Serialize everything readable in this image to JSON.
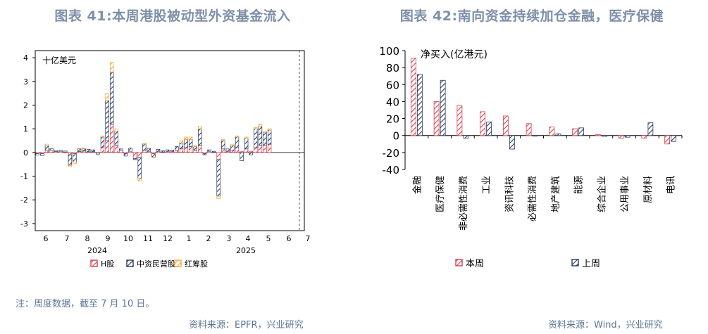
{
  "left": {
    "title": "图表 41:本周港股被动型外资基金流入",
    "source": "资料来源：EPFR，兴业研究",
    "note": "注：周度数据，截至 7 月 10 日。"
  },
  "right": {
    "title": "图表 42:南向资金持续加仓金融，医疗保健",
    "source": "资料来源：Wind，兴业研究"
  },
  "colors": {
    "red": "#d6404e",
    "navy": "#2b3a5c",
    "orange": "#f2a43a",
    "title": "#7d90a9",
    "note": "#5a7596"
  },
  "chart_data": [
    {
      "type": "bar",
      "stacked": true,
      "unit_label": "十亿美元",
      "ylim": [
        -3.3,
        4.3
      ],
      "y_ticks": [
        "4",
        "3",
        "2",
        "1",
        "0",
        "-1",
        "-2",
        "-3"
      ],
      "x_tick_labels": [
        "6",
        "7",
        "8",
        "9",
        "10",
        "11",
        "12",
        "1",
        "2",
        "3",
        "4",
        "5",
        "6",
        "7"
      ],
      "year_labels": [
        "2024",
        "2025"
      ],
      "legend": [
        "H股",
        "中资民营股",
        "红筹股"
      ],
      "legend_position": "bottom",
      "weeks": 58,
      "series": [
        {
          "name": "H股",
          "values": [
            -0.05,
            -0.05,
            0.1,
            0.08,
            0.04,
            0.05,
            0.02,
            -0.1,
            -0.05,
            0.04,
            0.06,
            0.03,
            0.03,
            -0.02,
            0.2,
            0.5,
            1.2,
            0.3,
            0.1,
            -0.05,
            0.05,
            -0.25,
            -0.2,
            0.1,
            0.05,
            -0.05,
            0.05,
            0.02,
            0.05,
            0.05,
            0.1,
            0.15,
            0.2,
            0.25,
            0.1,
            0.3,
            -0.05,
            0.05,
            0.02,
            -0.3,
            0.15,
            0.05,
            0.1,
            0.2,
            0.05,
            0.15,
            0.05,
            0.2,
            0.3,
            0.3,
            0.35,
            0,
            0,
            0,
            0,
            0,
            0,
            0
          ]
        },
        {
          "name": "中资民营股",
          "values": [
            -0.05,
            -0.08,
            0.2,
            0.08,
            0.05,
            0.04,
            0.04,
            -0.45,
            -0.35,
            0.12,
            0.1,
            0.1,
            0.08,
            -0.05,
            0.45,
            1.7,
            2.2,
            0.6,
            0.05,
            -0.1,
            0.13,
            -0.05,
            -0.9,
            0.25,
            0.12,
            -0.15,
            0.08,
            0.05,
            0.06,
            0.05,
            0.15,
            0.25,
            0.35,
            0.3,
            0.15,
            0.7,
            -0.05,
            0.06,
            0.03,
            -1.55,
            0.35,
            0.1,
            0.2,
            0.45,
            -0.35,
            0.45,
            -0.1,
            0.8,
            0.8,
            0.55,
            0.6,
            0,
            0,
            0,
            0,
            0,
            0,
            0
          ]
        },
        {
          "name": "红筹股",
          "values": [
            0,
            0,
            0.05,
            0,
            0,
            0,
            0,
            -0.05,
            -0.08,
            0.02,
            0.02,
            0,
            0,
            0,
            0.05,
            0.3,
            0.4,
            0.1,
            0,
            0,
            0,
            0,
            -0.1,
            0.05,
            0,
            -0.02,
            0,
            0,
            0,
            0,
            0,
            0.1,
            0.1,
            0.1,
            0.05,
            0.1,
            0,
            0,
            0,
            -0.1,
            0.05,
            0,
            0.05,
            0.05,
            0,
            0.05,
            0,
            0.05,
            0.1,
            0.05,
            0.05,
            0,
            0,
            0,
            0,
            0,
            0,
            0
          ]
        }
      ]
    },
    {
      "type": "bar",
      "unit_label": "净买入(亿港元)",
      "ylim": [
        -40,
        100
      ],
      "y_ticks": [
        "100",
        "80",
        "60",
        "40",
        "20",
        "0",
        "-20",
        "-40"
      ],
      "categories": [
        "金融",
        "医疗保健",
        "非必需性消费",
        "工业",
        "资讯科技",
        "必需性消费",
        "地产建筑",
        "能源",
        "综合企业",
        "公用事业",
        "原材料",
        "电讯"
      ],
      "legend_position": "bottom",
      "series": [
        {
          "name": "本周",
          "values": [
            91,
            40,
            35,
            28,
            23,
            14,
            10,
            8,
            1,
            -3,
            -3,
            -10
          ]
        },
        {
          "name": "上周",
          "values": [
            72,
            65,
            -3,
            16,
            -16,
            0,
            2,
            9,
            -1,
            -2,
            15,
            -7
          ]
        }
      ]
    }
  ]
}
